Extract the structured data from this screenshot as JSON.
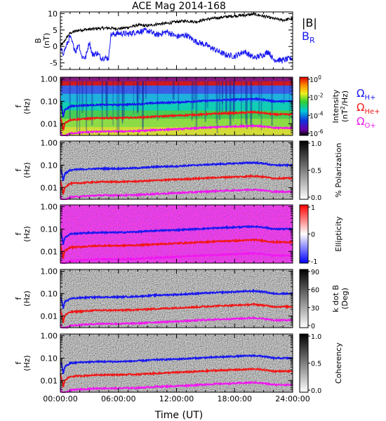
{
  "chart_data": {
    "type": "line+spectrogram",
    "title": "ACE Mag 2014-168",
    "xlabel": "Time (UT)",
    "x_ticks": [
      "00:00:00",
      "06:00:00",
      "12:00:00",
      "18:00:00",
      "24:00:00"
    ],
    "xlim_hours": [
      0,
      24
    ],
    "panel_b": {
      "ylabel_main": "B",
      "ylabel_unit": "(nT)",
      "ylim": [
        -7,
        10.5
      ],
      "y_ticks": [
        "10",
        "5",
        "0",
        "-5"
      ],
      "y_tick_values": [
        10,
        5,
        0,
        -5
      ],
      "series": [
        {
          "name_parts": [
            "|B|"
          ],
          "color": "#000000",
          "points": [
            [
              0,
              0
            ],
            [
              0.3,
              1
            ],
            [
              0.6,
              2.5
            ],
            [
              1,
              4
            ],
            [
              1.4,
              4.5
            ],
            [
              2,
              5
            ],
            [
              3,
              5.2
            ],
            [
              4,
              5.5
            ],
            [
              5,
              5.6
            ],
            [
              6,
              5.4
            ],
            [
              7,
              5.8
            ],
            [
              8,
              6.5
            ],
            [
              9,
              6.3
            ],
            [
              10,
              6.8
            ],
            [
              11,
              7
            ],
            [
              12,
              7.5
            ],
            [
              13,
              7.8
            ],
            [
              14,
              7.5
            ],
            [
              15,
              8.2
            ],
            [
              16,
              8.6
            ],
            [
              17,
              9
            ],
            [
              18,
              9.3
            ],
            [
              19,
              9.5
            ],
            [
              20,
              9.8
            ],
            [
              21,
              9.2
            ],
            [
              22,
              8.5
            ],
            [
              23,
              8
            ],
            [
              24,
              8.5
            ]
          ]
        },
        {
          "name_parts": [
            "B",
            "R"
          ],
          "color": "#1818f0",
          "points": [
            [
              0,
              -1
            ],
            [
              0.3,
              -2
            ],
            [
              0.6,
              0
            ],
            [
              1,
              3
            ],
            [
              1.3,
              0.5
            ],
            [
              1.6,
              -1.5
            ],
            [
              1.9,
              1
            ],
            [
              2.2,
              -3
            ],
            [
              2.6,
              -3.5
            ],
            [
              3,
              1.5
            ],
            [
              3.3,
              -2.5
            ],
            [
              3.8,
              -2
            ],
            [
              4.2,
              -3.5
            ],
            [
              5,
              -3.5
            ],
            [
              5.2,
              3.5
            ],
            [
              6,
              4
            ],
            [
              7,
              3.8
            ],
            [
              8,
              4.5
            ],
            [
              9,
              4.8
            ],
            [
              10,
              3.5
            ],
            [
              11,
              4.5
            ],
            [
              12,
              3
            ],
            [
              13,
              3.5
            ],
            [
              14,
              1.5
            ],
            [
              15,
              0.5
            ],
            [
              16,
              -1
            ],
            [
              17,
              -2.5
            ],
            [
              18,
              -3
            ],
            [
              19,
              -1.5
            ],
            [
              20,
              -3.5
            ],
            [
              21,
              -2.5
            ],
            [
              21.5,
              -1.5
            ],
            [
              22,
              -4
            ],
            [
              23,
              -4.2
            ],
            [
              24,
              -3.5
            ]
          ]
        }
      ]
    },
    "freq_panels": {
      "ylabel_main": "f",
      "ylabel_unit": "(Hz)",
      "ylim": [
        0.003,
        1.2
      ],
      "y_ticks": [
        "1.00",
        "0.10",
        "0.01"
      ],
      "y_tick_values": [
        1.0,
        0.1,
        0.01
      ],
      "panels": [
        {
          "name": "intensity",
          "colorbar": "rainbow",
          "colorbar_label": "Intensity",
          "colorbar_unit_base": "(nT",
          "colorbar_unit_sup": "2",
          "colorbar_unit_end": "/Hz)",
          "colorbar_ticks": [
            {
              "base": "10",
              "exp": "0"
            },
            {
              "base": "10",
              "exp": "-2"
            },
            {
              "base": "10",
              "exp": "-4"
            },
            {
              "base": "10",
              "exp": "-6"
            }
          ]
        },
        {
          "name": "polarization",
          "colorbar": "gray",
          "colorbar_label": "% Polarization",
          "colorbar_ticks": [
            "1.0",
            "0.5",
            "0.0"
          ]
        },
        {
          "name": "ellipticity",
          "colorbar": "bwr",
          "colorbar_label": "Ellipticity",
          "colorbar_ticks": [
            "1",
            "0",
            "-1"
          ]
        },
        {
          "name": "k_dot_b",
          "colorbar": "gray",
          "colorbar_label": "k dot B",
          "colorbar_label2": "(Deg)",
          "colorbar_ticks": [
            "90",
            "60",
            "30",
            "0"
          ]
        },
        {
          "name": "coherency",
          "colorbar": "gray",
          "colorbar_label": "Coherency",
          "colorbar_ticks": [
            "1.0",
            "0.5",
            "0.0"
          ]
        }
      ]
    },
    "gyrofrequency_lines": [
      {
        "label_symbol": "Ω",
        "label_sub": "H+",
        "color": "#1818f0",
        "points": [
          [
            0,
            0.07
          ],
          [
            0.3,
            0.02
          ],
          [
            0.5,
            0.045
          ],
          [
            0.8,
            0.05
          ],
          [
            1,
            0.06
          ],
          [
            2,
            0.065
          ],
          [
            4,
            0.07
          ],
          [
            6,
            0.07
          ],
          [
            8,
            0.075
          ],
          [
            9,
            0.08
          ],
          [
            10,
            0.085
          ],
          [
            12,
            0.09
          ],
          [
            14,
            0.1
          ],
          [
            16,
            0.11
          ],
          [
            18,
            0.12
          ],
          [
            19,
            0.125
          ],
          [
            20,
            0.13
          ],
          [
            21,
            0.12
          ],
          [
            22,
            0.1
          ],
          [
            23,
            0.1
          ],
          [
            24,
            0.1
          ]
        ]
      },
      {
        "label_symbol": "Ω",
        "label_sub": "He+",
        "color": "#f01818",
        "points": [
          [
            0,
            0.018
          ],
          [
            0.3,
            0.005
          ],
          [
            0.5,
            0.011
          ],
          [
            0.8,
            0.013
          ],
          [
            1,
            0.015
          ],
          [
            2,
            0.016
          ],
          [
            4,
            0.018
          ],
          [
            6,
            0.018
          ],
          [
            8,
            0.019
          ],
          [
            9,
            0.02
          ],
          [
            10,
            0.021
          ],
          [
            12,
            0.023
          ],
          [
            14,
            0.025
          ],
          [
            16,
            0.028
          ],
          [
            18,
            0.03
          ],
          [
            19,
            0.031
          ],
          [
            20,
            0.033
          ],
          [
            21,
            0.03
          ],
          [
            22,
            0.026
          ],
          [
            23,
            0.026
          ],
          [
            24,
            0.026
          ]
        ]
      },
      {
        "label_symbol": "Ω",
        "label_sub": "O+",
        "color": "#f018f0",
        "points": [
          [
            0,
            0.0045
          ],
          [
            0.3,
            0.0013
          ],
          [
            0.5,
            0.0028
          ],
          [
            0.8,
            0.0033
          ],
          [
            1,
            0.0037
          ],
          [
            2,
            0.004
          ],
          [
            4,
            0.0045
          ],
          [
            6,
            0.0045
          ],
          [
            8,
            0.0047
          ],
          [
            9,
            0.005
          ],
          [
            10,
            0.0053
          ],
          [
            12,
            0.0057
          ],
          [
            14,
            0.0063
          ],
          [
            16,
            0.007
          ],
          [
            18,
            0.0075
          ],
          [
            19,
            0.0078
          ],
          [
            20,
            0.0082
          ],
          [
            21,
            0.0075
          ],
          [
            22,
            0.0065
          ],
          [
            23,
            0.0065
          ],
          [
            24,
            0.0065
          ]
        ]
      }
    ]
  }
}
